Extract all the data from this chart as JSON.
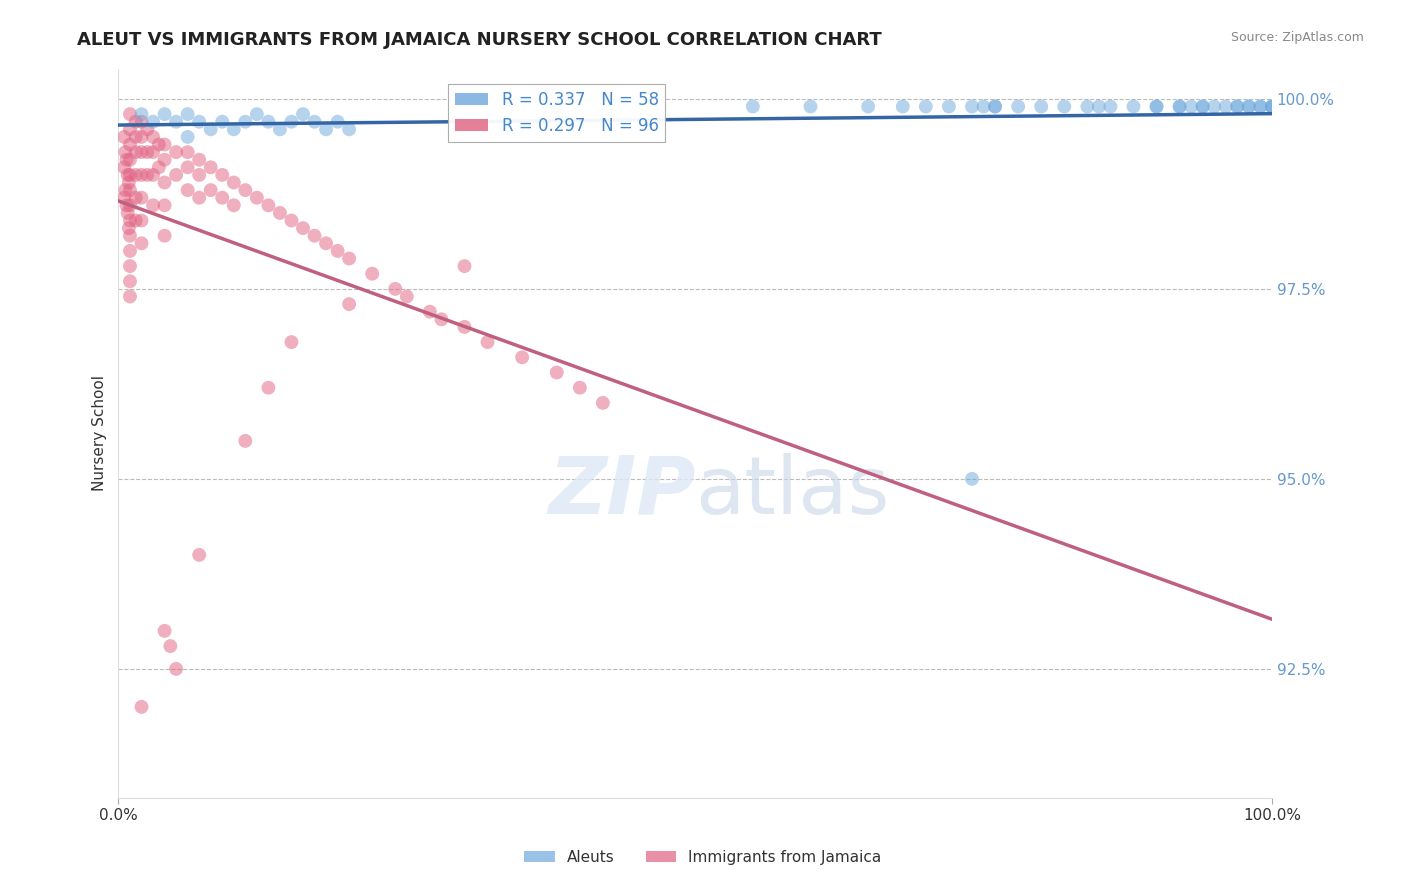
{
  "title": "ALEUT VS IMMIGRANTS FROM JAMAICA NURSERY SCHOOL CORRELATION CHART",
  "source": "Source: ZipAtlas.com",
  "ylabel": "Nursery School",
  "xlim": [
    0.0,
    1.0
  ],
  "ylim": [
    0.908,
    1.004
  ],
  "yticks": [
    1.0,
    0.975,
    0.95,
    0.925
  ],
  "ytick_labels": [
    "100.0%",
    "97.5%",
    "95.0%",
    "92.5%"
  ],
  "xtick_labels": [
    "0.0%",
    "100.0%"
  ],
  "xticks": [
    0.0,
    1.0
  ],
  "aleut_color": "#6fa8dc",
  "jamaica_color": "#e06080",
  "aleut_R": 0.337,
  "aleut_N": 58,
  "jamaica_R": 0.297,
  "jamaica_N": 96,
  "legend_label_aleut": "Aleuts",
  "legend_label_jamaica": "Immigrants from Jamaica",
  "aleut_line_color": "#3465a4",
  "jamaica_line_color": "#c06080",
  "aleut_x": [
    0.02,
    0.03,
    0.04,
    0.05,
    0.06,
    0.06,
    0.07,
    0.08,
    0.09,
    0.1,
    0.11,
    0.12,
    0.13,
    0.14,
    0.15,
    0.16,
    0.17,
    0.18,
    0.19,
    0.2,
    0.55,
    0.6,
    0.65,
    0.68,
    0.7,
    0.72,
    0.74,
    0.75,
    0.76,
    0.78,
    0.8,
    0.82,
    0.84,
    0.85,
    0.86,
    0.88,
    0.9,
    0.9,
    0.92,
    0.92,
    0.93,
    0.94,
    0.94,
    0.95,
    0.96,
    0.97,
    0.97,
    0.98,
    0.98,
    0.99,
    0.99,
    1.0,
    1.0,
    1.0,
    0.38,
    0.38,
    0.74,
    0.76
  ],
  "aleut_y": [
    0.998,
    0.997,
    0.998,
    0.997,
    0.998,
    0.995,
    0.997,
    0.996,
    0.997,
    0.996,
    0.997,
    0.998,
    0.997,
    0.996,
    0.997,
    0.998,
    0.997,
    0.996,
    0.997,
    0.996,
    0.999,
    0.999,
    0.999,
    0.999,
    0.999,
    0.999,
    0.999,
    0.999,
    0.999,
    0.999,
    0.999,
    0.999,
    0.999,
    0.999,
    0.999,
    0.999,
    0.999,
    0.999,
    0.999,
    0.999,
    0.999,
    0.999,
    0.999,
    0.999,
    0.999,
    0.999,
    0.999,
    0.999,
    0.999,
    0.999,
    0.999,
    0.999,
    0.999,
    0.999,
    0.999,
    0.999,
    0.95,
    0.999
  ],
  "jamaica_x": [
    0.005,
    0.005,
    0.005,
    0.006,
    0.006,
    0.007,
    0.007,
    0.008,
    0.008,
    0.009,
    0.009,
    0.01,
    0.01,
    0.01,
    0.01,
    0.01,
    0.01,
    0.01,
    0.01,
    0.01,
    0.01,
    0.01,
    0.01,
    0.01,
    0.015,
    0.015,
    0.015,
    0.015,
    0.015,
    0.015,
    0.02,
    0.02,
    0.02,
    0.02,
    0.02,
    0.02,
    0.02,
    0.025,
    0.025,
    0.025,
    0.03,
    0.03,
    0.03,
    0.03,
    0.035,
    0.035,
    0.04,
    0.04,
    0.04,
    0.04,
    0.04,
    0.05,
    0.05,
    0.06,
    0.06,
    0.06,
    0.07,
    0.07,
    0.07,
    0.08,
    0.08,
    0.09,
    0.09,
    0.1,
    0.1,
    0.11,
    0.12,
    0.13,
    0.14,
    0.15,
    0.16,
    0.17,
    0.18,
    0.19,
    0.2,
    0.22,
    0.24,
    0.25,
    0.27,
    0.28,
    0.3,
    0.32,
    0.35,
    0.38,
    0.4,
    0.42,
    0.04,
    0.045,
    0.02,
    0.05,
    0.07,
    0.11,
    0.13,
    0.15,
    0.2,
    0.3
  ],
  "jamaica_y": [
    0.995,
    0.991,
    0.987,
    0.993,
    0.988,
    0.992,
    0.986,
    0.99,
    0.985,
    0.989,
    0.983,
    0.998,
    0.996,
    0.994,
    0.992,
    0.99,
    0.988,
    0.986,
    0.984,
    0.982,
    0.98,
    0.978,
    0.976,
    0.974,
    0.997,
    0.995,
    0.993,
    0.99,
    0.987,
    0.984,
    0.997,
    0.995,
    0.993,
    0.99,
    0.987,
    0.984,
    0.981,
    0.996,
    0.993,
    0.99,
    0.995,
    0.993,
    0.99,
    0.986,
    0.994,
    0.991,
    0.994,
    0.992,
    0.989,
    0.986,
    0.982,
    0.993,
    0.99,
    0.993,
    0.991,
    0.988,
    0.992,
    0.99,
    0.987,
    0.991,
    0.988,
    0.99,
    0.987,
    0.989,
    0.986,
    0.988,
    0.987,
    0.986,
    0.985,
    0.984,
    0.983,
    0.982,
    0.981,
    0.98,
    0.979,
    0.977,
    0.975,
    0.974,
    0.972,
    0.971,
    0.97,
    0.968,
    0.966,
    0.964,
    0.962,
    0.96,
    0.93,
    0.928,
    0.92,
    0.925,
    0.94,
    0.955,
    0.962,
    0.968,
    0.973,
    0.978
  ]
}
